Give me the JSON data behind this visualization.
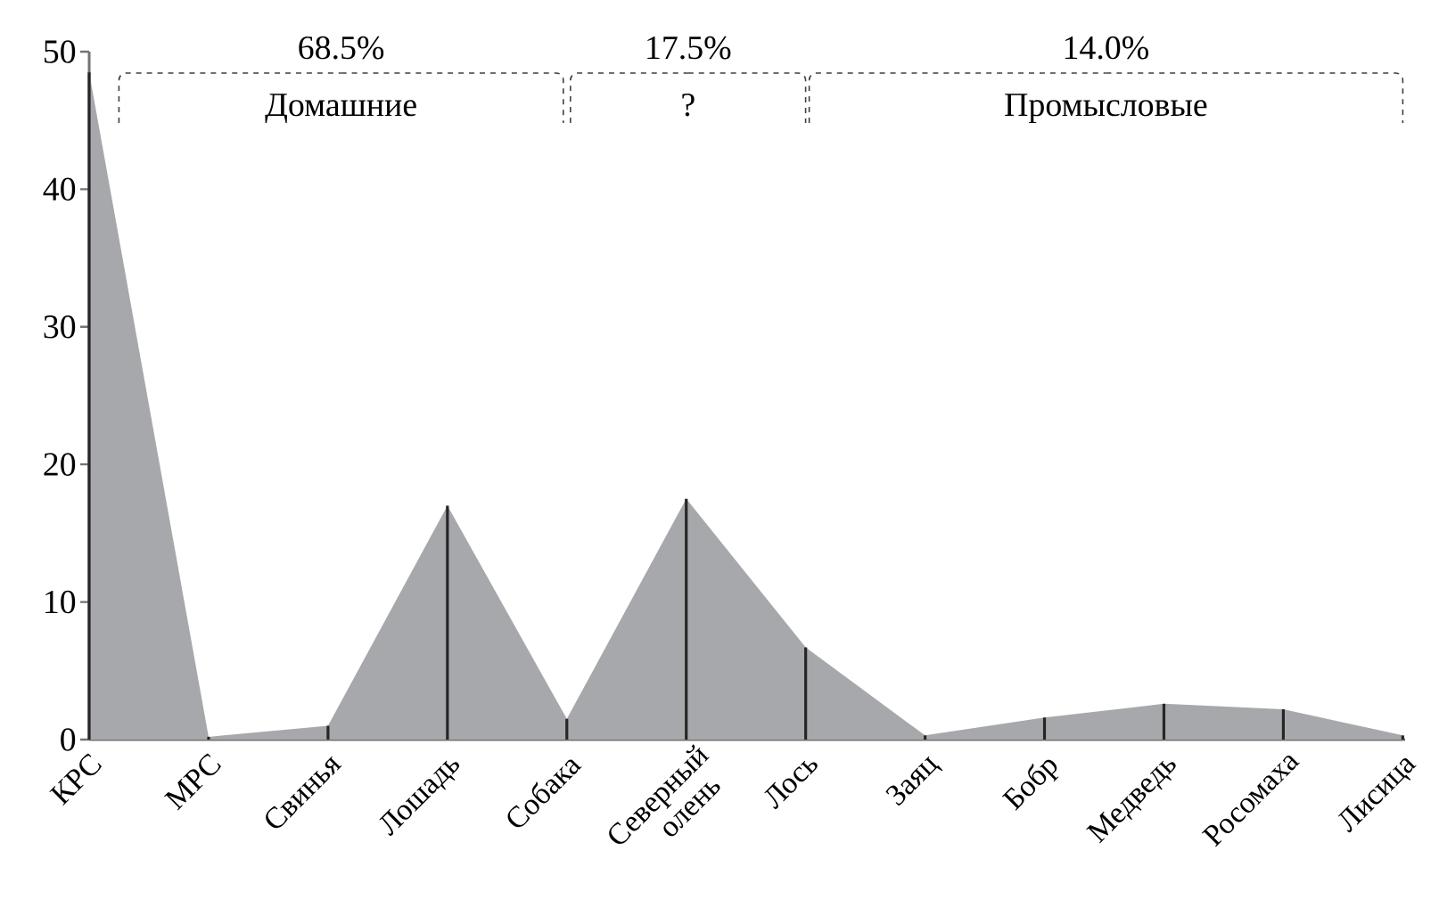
{
  "chart_data": {
    "type": "area",
    "categories": [
      "КРС",
      "МРС",
      "Свинья",
      "Лошадь",
      "Собака",
      "Северный олень",
      "Лось",
      "Заяц",
      "Бобр",
      "Медведь",
      "Росомаха",
      "Лисица"
    ],
    "series": [
      {
        "color": "#a7a8ab",
        "values": [
          48.5,
          0.2,
          1.0,
          17.0,
          1.5,
          17.5,
          6.7,
          0.3,
          1.6,
          2.6,
          2.2,
          0.3
        ]
      },
      {
        "type": "bar",
        "color": "#262626",
        "values": [
          48.5,
          0.2,
          1.0,
          17.0,
          1.5,
          17.5,
          6.7,
          0.3,
          1.6,
          2.6,
          2.2,
          0.3
        ]
      }
    ],
    "ylim": [
      0,
      50
    ],
    "yticks": [
      0,
      10,
      20,
      30,
      40,
      50
    ],
    "annotations": [
      "68.5%",
      "Домашние",
      "17.5%",
      "?",
      "14.0%",
      "Промысловые"
    ]
  }
}
